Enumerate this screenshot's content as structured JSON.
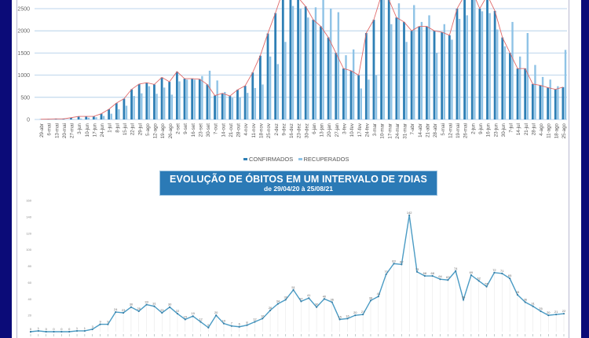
{
  "chart_data": [
    {
      "type": "bar",
      "title": "",
      "categories": [
        "29-abr",
        "6-mai",
        "13-mai",
        "20-mai",
        "27-mai",
        "3-jun",
        "10-jun",
        "17-jun",
        "24-jun",
        "1-jul",
        "8-jul",
        "15-jul",
        "22-jul",
        "29-jul",
        "5-ago",
        "12-ago",
        "19-ago",
        "26-ago",
        "2-set",
        "9-set",
        "16-set",
        "23-set",
        "30-set",
        "7-out",
        "14-out",
        "21-out",
        "28-out",
        "4-nov",
        "11-nov",
        "18-nov",
        "25-nov",
        "2-dez",
        "9-dez",
        "16-dez",
        "23-dez",
        "30-dez",
        "6-jan",
        "13-jan",
        "20-jan",
        "27-jan",
        "3-fev",
        "10-fev",
        "17-fev",
        "24-fev",
        "3-mar",
        "10-mar",
        "17-mar",
        "24-mar",
        "31-mar",
        "7-abr",
        "14-abr",
        "21-abr",
        "28-abr",
        "5-mai",
        "12-mai",
        "19-mai",
        "26-mai",
        "2-jun",
        "9-jun",
        "16-jun",
        "23-jun",
        "30-jun",
        "7-jul",
        "14-jul",
        "21-jul",
        "28-jul",
        "4-ago",
        "11-ago",
        "18-ago",
        "25-ago"
      ],
      "series": [
        {
          "name": "CONFIRMADOS",
          "color": "#2e7fb5",
          "values": [
            5,
            10,
            15,
            15,
            40,
            70,
            70,
            70,
            130,
            230,
            370,
            470,
            680,
            800,
            830,
            790,
            950,
            850,
            1080,
            920,
            920,
            910,
            790,
            540,
            590,
            530,
            670,
            760,
            1060,
            1440,
            1940,
            2400,
            2900,
            2800,
            2750,
            2550,
            2250,
            2100,
            1850,
            1500,
            1150,
            1100,
            1000,
            1950,
            2250,
            2800,
            2700,
            2300,
            2200,
            2000,
            2100,
            2100,
            2000,
            1970,
            1900,
            2500,
            2800,
            2900,
            2500,
            2800,
            2450,
            1850,
            1500,
            1150,
            1150,
            800,
            770,
            720,
            680,
            730
          ]
        },
        {
          "name": "RECUPERADOS",
          "color": "#8fc3e6",
          "values": [
            0,
            0,
            0,
            0,
            10,
            20,
            40,
            50,
            80,
            130,
            230,
            310,
            530,
            590,
            750,
            580,
            720,
            560,
            860,
            900,
            900,
            980,
            1100,
            880,
            620,
            490,
            500,
            600,
            710,
            790,
            1420,
            1250,
            1750,
            2560,
            2500,
            2300,
            2530,
            2750,
            2500,
            2420,
            1450,
            1580,
            700,
            900,
            1000,
            2900,
            2150,
            2620,
            1750,
            2580,
            2200,
            2350,
            1500,
            2150,
            1800,
            2270,
            2350,
            2900,
            2440,
            2400,
            2030,
            1650,
            2200,
            1420,
            1950,
            1230,
            960,
            900,
            750,
            1570
          ]
        }
      ],
      "trend_color": "#e06a6a",
      "yticks": [
        "0",
        "500",
        "1000",
        "1500",
        "2000",
        "2500"
      ],
      "ylim": [
        0,
        3000
      ],
      "grid": true,
      "legend": "bottom"
    },
    {
      "type": "line",
      "title": "EVOLUÇÃO DE ÓBITOS EM UM INTERVALO DE 7DIAS",
      "subtitle": "de 29/04/20 à 25/08/21",
      "series": [
        {
          "name": "Óbitos",
          "color": "#4a9bc4",
          "values": [
            0,
            1,
            0,
            0,
            0,
            0,
            1,
            1,
            3,
            9,
            9,
            24,
            23,
            30,
            25,
            33,
            31,
            23,
            30,
            22,
            15,
            19,
            12,
            5,
            20,
            10,
            7,
            6,
            8,
            12,
            16,
            26,
            34,
            39,
            51,
            37,
            41,
            30,
            40,
            36,
            15,
            16,
            20,
            21,
            38,
            43,
            70,
            83,
            82,
            142,
            73,
            68,
            68,
            64,
            63,
            74,
            39,
            69,
            62,
            55,
            72,
            71,
            65,
            45,
            36,
            31,
            25,
            20,
            21,
            22
          ]
        }
      ],
      "yticks": [
        "0",
        "20",
        "40",
        "60",
        "80",
        "100",
        "120",
        "140",
        "160"
      ],
      "ylim": [
        0,
        160
      ],
      "grid": false
    }
  ]
}
